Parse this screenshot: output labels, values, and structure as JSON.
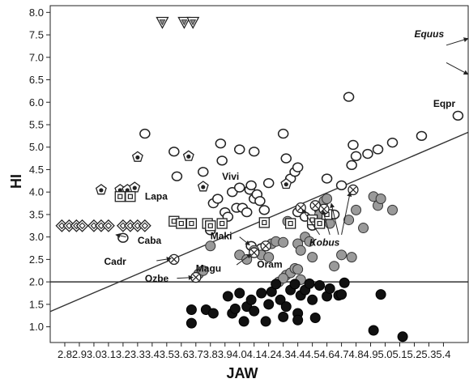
{
  "chart_data": {
    "type": "scatter",
    "xlabel": "JAW",
    "ylabel": "HI",
    "xlim": [
      2.7,
      5.57
    ],
    "ylim": [
      0.65,
      8.15
    ],
    "x_ticks": [
      "2.8",
      "2.9",
      "3.0",
      "3.1",
      "3.2",
      "3.3",
      "3.4",
      "3.5",
      "3.6",
      "3.7",
      "3.8",
      "3.9",
      "4.0",
      "4.1",
      "4.2",
      "4.3",
      "4.4",
      "4.5",
      "4.6",
      "4.7",
      "4.8",
      "4.9",
      "5.0",
      "5.1",
      "5.2",
      "5.3",
      "5.4"
    ],
    "y_ticks": [
      "1.0",
      "1.5",
      "2.0",
      "2.5",
      "3.0",
      "3.5",
      "4.0",
      "4.5",
      "5.0",
      "5.5",
      "6.0",
      "6.5",
      "7.0",
      "7.5",
      "8.0"
    ],
    "reference_lines": [
      {
        "kind": "horizontal",
        "y": 2.0
      },
      {
        "kind": "regression",
        "x": [
          2.7,
          5.57
        ],
        "y": [
          1.34,
          5.33
        ]
      }
    ],
    "series": [
      {
        "marker": "hollow-circle",
        "points": [
          [
            3.2,
            2.98
          ],
          [
            3.35,
            5.3
          ],
          [
            3.55,
            4.9
          ],
          [
            3.57,
            4.35
          ],
          [
            3.75,
            4.45
          ],
          [
            3.8,
            3.15
          ],
          [
            3.82,
            3.75
          ],
          [
            3.85,
            3.85
          ],
          [
            3.87,
            5.08
          ],
          [
            3.88,
            4.7
          ],
          [
            3.9,
            3.55
          ],
          [
            3.92,
            3.45
          ],
          [
            3.95,
            4.0
          ],
          [
            3.98,
            3.65
          ],
          [
            4.0,
            4.1
          ],
          [
            4.0,
            4.95
          ],
          [
            4.02,
            3.65
          ],
          [
            4.05,
            3.55
          ],
          [
            4.07,
            4.05
          ],
          [
            4.08,
            4.15
          ],
          [
            4.1,
            4.9
          ],
          [
            4.1,
            3.85
          ],
          [
            4.12,
            3.95
          ],
          [
            4.14,
            3.8
          ],
          [
            4.17,
            3.6
          ],
          [
            4.2,
            4.2
          ],
          [
            4.3,
            5.3
          ],
          [
            4.32,
            4.75
          ],
          [
            4.35,
            4.3
          ],
          [
            4.38,
            4.45
          ],
          [
            4.4,
            4.55
          ],
          [
            4.4,
            3.55
          ],
          [
            4.45,
            3.45
          ],
          [
            4.5,
            3.25
          ],
          [
            4.55,
            3.6
          ],
          [
            4.6,
            4.3
          ],
          [
            4.65,
            3.5
          ],
          [
            4.7,
            4.15
          ],
          [
            4.75,
            6.12
          ],
          [
            4.77,
            4.6
          ],
          [
            4.78,
            5.05
          ],
          [
            4.8,
            4.8
          ],
          [
            4.88,
            4.85
          ],
          [
            4.95,
            4.95
          ],
          [
            5.05,
            5.1
          ],
          [
            5.25,
            5.25
          ],
          [
            5.5,
            5.7
          ],
          [
            4.08,
            2.8
          ],
          [
            4.15,
            2.75
          ]
        ]
      },
      {
        "marker": "gray-circle",
        "points": [
          [
            3.72,
            2.18
          ],
          [
            3.75,
            2.25
          ],
          [
            3.8,
            2.8
          ],
          [
            4.0,
            2.6
          ],
          [
            4.05,
            2.5
          ],
          [
            4.1,
            2.7
          ],
          [
            4.15,
            2.6
          ],
          [
            4.2,
            2.55
          ],
          [
            4.22,
            2.85
          ],
          [
            4.25,
            2.9
          ],
          [
            4.3,
            2.88
          ],
          [
            4.32,
            2.15
          ],
          [
            4.33,
            3.35
          ],
          [
            4.35,
            2.2
          ],
          [
            4.38,
            2.3
          ],
          [
            4.4,
            2.28
          ],
          [
            4.4,
            2.85
          ],
          [
            4.42,
            2.7
          ],
          [
            4.45,
            3.0
          ],
          [
            4.48,
            2.9
          ],
          [
            4.5,
            2.55
          ],
          [
            4.55,
            3.5
          ],
          [
            4.58,
            3.8
          ],
          [
            4.6,
            3.85
          ],
          [
            4.62,
            3.3
          ],
          [
            4.65,
            2.35
          ],
          [
            4.7,
            2.6
          ],
          [
            4.75,
            3.38
          ],
          [
            4.77,
            2.55
          ],
          [
            4.8,
            3.6
          ],
          [
            4.85,
            3.2
          ],
          [
            4.92,
            3.9
          ],
          [
            4.95,
            3.7
          ],
          [
            4.97,
            3.85
          ],
          [
            5.05,
            3.6
          ],
          [
            4.27,
            2.0
          ],
          [
            4.3,
            2.08
          ],
          [
            4.42,
            2.05
          ]
        ]
      },
      {
        "marker": "black-circle",
        "points": [
          [
            3.67,
            1.38
          ],
          [
            3.67,
            1.08
          ],
          [
            3.77,
            1.38
          ],
          [
            3.82,
            1.3
          ],
          [
            3.92,
            1.68
          ],
          [
            3.95,
            1.3
          ],
          [
            3.97,
            1.4
          ],
          [
            4.0,
            1.75
          ],
          [
            4.03,
            1.12
          ],
          [
            4.05,
            1.45
          ],
          [
            4.08,
            1.6
          ],
          [
            4.1,
            1.35
          ],
          [
            4.15,
            1.75
          ],
          [
            4.18,
            1.12
          ],
          [
            4.2,
            1.5
          ],
          [
            4.22,
            1.78
          ],
          [
            4.25,
            1.95
          ],
          [
            4.28,
            1.6
          ],
          [
            4.3,
            1.22
          ],
          [
            4.32,
            1.45
          ],
          [
            4.35,
            1.82
          ],
          [
            4.38,
            1.95
          ],
          [
            4.4,
            1.3
          ],
          [
            4.4,
            1.15
          ],
          [
            4.42,
            1.7
          ],
          [
            4.45,
            1.82
          ],
          [
            4.48,
            1.96
          ],
          [
            4.5,
            1.6
          ],
          [
            4.52,
            1.2
          ],
          [
            4.55,
            1.92
          ],
          [
            4.6,
            1.68
          ],
          [
            4.62,
            1.85
          ],
          [
            4.68,
            1.7
          ],
          [
            4.7,
            1.72
          ],
          [
            4.72,
            1.98
          ],
          [
            4.92,
            0.92
          ],
          [
            4.97,
            1.72
          ],
          [
            5.12,
            0.78
          ]
        ]
      },
      {
        "marker": "pentagon",
        "points": [
          [
            3.05,
            4.05
          ],
          [
            3.18,
            4.05
          ],
          [
            3.23,
            4.05
          ],
          [
            3.28,
            4.1
          ],
          [
            3.3,
            4.78
          ],
          [
            3.65,
            4.8
          ],
          [
            3.75,
            4.12
          ],
          [
            4.32,
            4.18
          ]
        ]
      },
      {
        "marker": "square",
        "points": [
          [
            3.18,
            3.9
          ],
          [
            3.25,
            3.9
          ],
          [
            3.55,
            3.35
          ],
          [
            3.6,
            3.3
          ],
          [
            3.67,
            3.3
          ],
          [
            3.78,
            3.3
          ],
          [
            3.8,
            3.25
          ],
          [
            3.88,
            3.3
          ],
          [
            4.17,
            3.32
          ],
          [
            4.35,
            3.3
          ],
          [
            4.5,
            3.38
          ],
          [
            4.55,
            3.3
          ],
          [
            4.6,
            3.5
          ]
        ]
      },
      {
        "marker": "diamond",
        "points": [
          [
            2.78,
            3.25
          ],
          [
            2.83,
            3.25
          ],
          [
            2.88,
            3.25
          ],
          [
            2.92,
            3.25
          ],
          [
            3.0,
            3.25
          ],
          [
            3.05,
            3.25
          ],
          [
            3.1,
            3.25
          ],
          [
            3.2,
            3.25
          ],
          [
            3.25,
            3.25
          ],
          [
            3.3,
            3.25
          ],
          [
            3.35,
            3.25
          ]
        ]
      },
      {
        "marker": "crossed-circle",
        "points": [
          [
            3.55,
            2.5
          ],
          [
            3.7,
            2.1
          ],
          [
            4.1,
            2.65
          ],
          [
            4.18,
            2.8
          ],
          [
            4.42,
            3.65
          ],
          [
            4.52,
            3.7
          ],
          [
            4.58,
            3.62
          ],
          [
            4.78,
            4.05
          ]
        ]
      },
      {
        "marker": "triangle-down",
        "points": [
          [
            3.47,
            7.78
          ],
          [
            3.62,
            7.78
          ],
          [
            3.68,
            7.78
          ]
        ]
      }
    ],
    "annotations": [
      {
        "text": "Equus",
        "x": 5.2,
        "y": 7.45,
        "italic": true
      },
      {
        "text": "Eqpr",
        "x": 5.33,
        "y": 5.9
      },
      {
        "text": "Vivi",
        "x": 3.88,
        "y": 4.27
      },
      {
        "text": "Lapa",
        "x": 3.35,
        "y": 3.83
      },
      {
        "text": "Caba",
        "x": 3.3,
        "y": 2.85
      },
      {
        "text": "Cadr",
        "x": 3.07,
        "y": 2.38
      },
      {
        "text": "Ozbe",
        "x": 3.35,
        "y": 2.0
      },
      {
        "text": "Maki",
        "x": 3.8,
        "y": 2.95
      },
      {
        "text": "Magu",
        "x": 3.7,
        "y": 2.23
      },
      {
        "text": "Oram",
        "x": 4.12,
        "y": 2.32
      },
      {
        "text": "Kobus",
        "x": 4.48,
        "y": 2.8,
        "italic": true
      }
    ],
    "arrows": [
      {
        "from": [
          5.42,
          7.27
        ],
        "to": [
          5.57,
          7.42
        ]
      },
      {
        "from": [
          5.42,
          6.88
        ],
        "to": [
          5.57,
          6.62
        ]
      },
      {
        "from": [
          3.22,
          3.0
        ],
        "to": [
          3.15,
          3.05
        ]
      },
      {
        "from": [
          3.43,
          2.47
        ],
        "to": [
          3.53,
          2.52
        ]
      },
      {
        "from": [
          3.57,
          2.08
        ],
        "to": [
          3.68,
          2.1
        ]
      },
      {
        "from": [
          4.0,
          3.0
        ],
        "to": [
          4.07,
          2.82
        ]
      },
      {
        "from": [
          3.98,
          2.38
        ],
        "to": [
          4.08,
          2.62
        ]
      },
      {
        "from": [
          4.55,
          3.05
        ],
        "to": [
          4.43,
          3.62
        ]
      },
      {
        "from": [
          4.62,
          3.05
        ],
        "to": [
          4.57,
          3.6
        ]
      },
      {
        "from": [
          4.7,
          3.05
        ],
        "to": [
          4.76,
          4.0
        ]
      },
      {
        "from": [
          4.68,
          3.05
        ],
        "to": [
          4.63,
          3.75
        ]
      }
    ]
  }
}
